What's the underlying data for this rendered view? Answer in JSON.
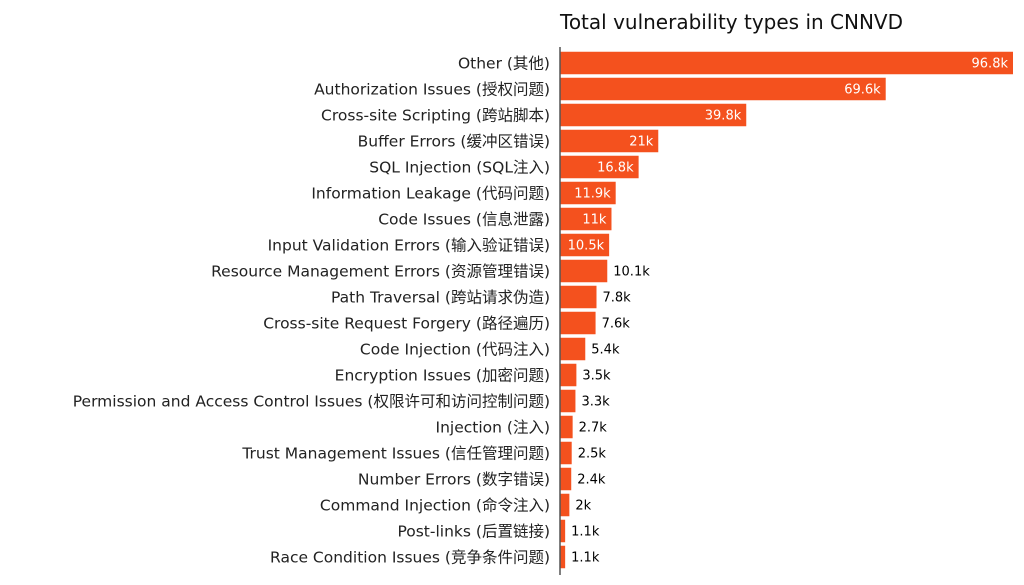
{
  "chart_data": {
    "type": "bar",
    "orientation": "horizontal",
    "title": "Total vulnerability types in CNNVD",
    "xlabel": "",
    "ylabel": "",
    "grid": false,
    "bar_color": "#f4511e",
    "axis_color": "#555555",
    "inside_label_color": "#ffffff",
    "outside_label_color": "#000000",
    "categories": [
      "Other (其他)",
      "Authorization Issues (授权问题)",
      "Cross-site Scripting (跨站脚本)",
      "Buffer Errors (缓冲区错误)",
      "SQL Injection (SQL注入)",
      "Information Leakage (代码问题)",
      "Code Issues (信息泄露)",
      "Input Validation Errors (输入验证错误)",
      "Resource Management Errors (资源管理错误)",
      "Path Traversal (跨站请求伪造)",
      "Cross-site Request Forgery (路径遍历)",
      "Code Injection (代码注入)",
      "Encryption Issues (加密问题)",
      "Permission and Access Control Issues (权限许可和访问控制问题)",
      "Injection (注入)",
      "Trust Management Issues (信任管理问题)",
      "Number Errors (数字错误)",
      "Command Injection (命令注入)",
      "Post-links (后置链接)",
      "Race Condition Issues (竞争条件问题)"
    ],
    "values": [
      96800,
      69600,
      39800,
      21000,
      16800,
      11900,
      11000,
      10500,
      10100,
      7800,
      7600,
      5400,
      3500,
      3300,
      2700,
      2500,
      2400,
      2000,
      1100,
      1100
    ],
    "value_labels": [
      "96.8k",
      "69.6k",
      "39.8k",
      "21k",
      "16.8k",
      "11.9k",
      "11k",
      "10.5k",
      "10.1k",
      "7.8k",
      "7.6k",
      "5.4k",
      "3.5k",
      "3.3k",
      "2.7k",
      "2.5k",
      "2.4k",
      "2k",
      "1.1k",
      "1.1k"
    ],
    "inside_label": [
      true,
      true,
      true,
      true,
      true,
      true,
      true,
      true,
      false,
      false,
      false,
      false,
      false,
      false,
      false,
      false,
      false,
      false,
      false,
      false
    ],
    "xlim": [
      0,
      96800
    ]
  }
}
